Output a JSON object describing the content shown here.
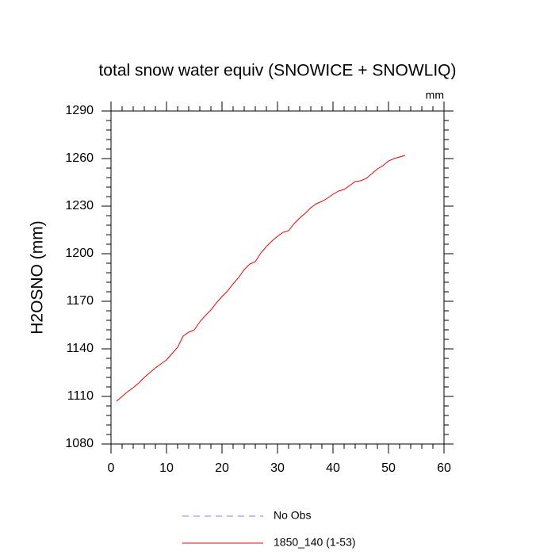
{
  "chart_data": {
    "type": "line",
    "title": "total snow water equiv (SNOWICE + SNOWLIQ)",
    "units": "mm",
    "y_label": "H2OSNO  (mm)",
    "x": [
      1,
      2,
      3,
      4,
      5,
      6,
      7,
      8,
      9,
      10,
      11,
      12,
      13,
      14,
      15,
      16,
      17,
      18,
      19,
      20,
      21,
      22,
      23,
      24,
      25,
      26,
      27,
      28,
      29,
      30,
      31,
      32,
      33,
      34,
      35,
      36,
      37,
      38,
      39,
      40,
      41,
      42,
      43,
      44,
      45,
      46,
      47,
      48,
      49,
      50,
      51,
      52,
      53
    ],
    "series": [
      {
        "name": "No Obs",
        "color": "#8080ff",
        "dashed": true,
        "values": [
          null,
          null,
          null,
          null,
          null,
          null,
          null,
          null,
          null,
          null,
          null,
          null,
          null,
          null,
          null,
          null,
          null,
          null,
          null,
          null,
          null,
          null,
          null,
          null,
          null,
          null,
          null,
          null,
          null,
          null,
          null,
          null,
          null,
          null,
          null,
          null,
          null,
          null,
          null,
          null,
          null,
          null,
          null,
          null,
          null,
          null,
          null,
          null,
          null,
          null,
          null,
          null,
          null
        ]
      },
      {
        "name": "1850_140 (1-53)",
        "color": "#ff0000",
        "dashed": false,
        "values": [
          1107,
          1110,
          1113,
          1115.5,
          1118.5,
          1122,
          1125,
          1128,
          1130.5,
          1133,
          1137,
          1141,
          1148,
          1150.5,
          1152,
          1157,
          1161,
          1164.5,
          1169,
          1173,
          1176.5,
          1181,
          1185,
          1190,
          1193.5,
          1195,
          1200.5,
          1204.5,
          1208,
          1211,
          1213.5,
          1214.5,
          1219,
          1222.5,
          1225.5,
          1229,
          1231.5,
          1233,
          1235,
          1237.5,
          1239.5,
          1240.5,
          1243,
          1245.5,
          1246,
          1247.5,
          1250.5,
          1253.5,
          1255.5,
          1258.5,
          1260,
          1261,
          1262
        ]
      }
    ],
    "xlim": [
      0,
      60
    ],
    "xticks": [
      0,
      10,
      20,
      30,
      40,
      50,
      60
    ],
    "ylim": [
      1080,
      1290
    ],
    "yticks": [
      1080,
      1110,
      1140,
      1170,
      1200,
      1230,
      1260,
      1290
    ]
  }
}
